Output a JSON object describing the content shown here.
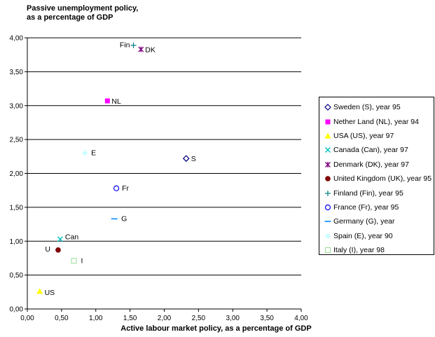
{
  "chart_data": {
    "type": "scatter",
    "title": "",
    "ylabel": "Passive unemployment policy, as a percentage of GDP",
    "xlabel": "Active labour market policy, as a percentage of GDP",
    "xlim": [
      0,
      4
    ],
    "ylim": [
      0,
      4
    ],
    "x_ticks": [
      "0,00",
      "0,50",
      "1,00",
      "1,50",
      "2,00",
      "2,50",
      "3,00",
      "3,50",
      "4,00"
    ],
    "y_ticks": [
      "0,00",
      "0,50",
      "1,00",
      "1,50",
      "2,00",
      "2,50",
      "3,00",
      "3,50",
      "4,00"
    ],
    "grid": "horizontal",
    "legend_position": "right",
    "series": [
      {
        "legend": "Sweden (S), year 95",
        "label": "S",
        "x": 2.32,
        "y": 2.22,
        "marker": "diamond-open",
        "color": "#000080"
      },
      {
        "legend": "Nether Land (NL), year 94",
        "label": "NL",
        "x": 1.17,
        "y": 3.07,
        "marker": "square",
        "color": "#ff00ff"
      },
      {
        "legend": "USA (US), year 97",
        "label": "US",
        "x": 0.18,
        "y": 0.26,
        "marker": "triangle",
        "color": "#ffff00"
      },
      {
        "legend": "Canada (Can), year 97",
        "label": "Can",
        "x": 0.48,
        "y": 1.03,
        "marker": "x",
        "color": "#00c0c0"
      },
      {
        "legend": "Denmark (DK), year 97",
        "label": "DK",
        "x": 1.66,
        "y": 3.83,
        "marker": "star",
        "color": "#800080"
      },
      {
        "legend": "United Kingdom (UK), year 95",
        "label": "U",
        "x": 0.45,
        "y": 0.87,
        "marker": "circle",
        "color": "#800000"
      },
      {
        "legend": "Finland (Fin), year 95",
        "label": "Fin",
        "x": 1.55,
        "y": 3.89,
        "marker": "plus",
        "color": "#008080"
      },
      {
        "legend": "France (Fr), year 95",
        "label": "Fr",
        "x": 1.3,
        "y": 1.78,
        "marker": "circle-open",
        "color": "#0000ff"
      },
      {
        "legend": "Germany (G), year",
        "label": "G",
        "x": 1.27,
        "y": 1.33,
        "marker": "dash",
        "color": "#33a0ff"
      },
      {
        "legend": "Spain (E), year 90",
        "label": "E",
        "x": 0.84,
        "y": 2.3,
        "marker": "diamond",
        "color": "#ccffff"
      },
      {
        "legend": "Italy (I), year 98",
        "label": "I",
        "x": 0.68,
        "y": 0.71,
        "marker": "square-open",
        "color": "#99dd99"
      }
    ]
  }
}
